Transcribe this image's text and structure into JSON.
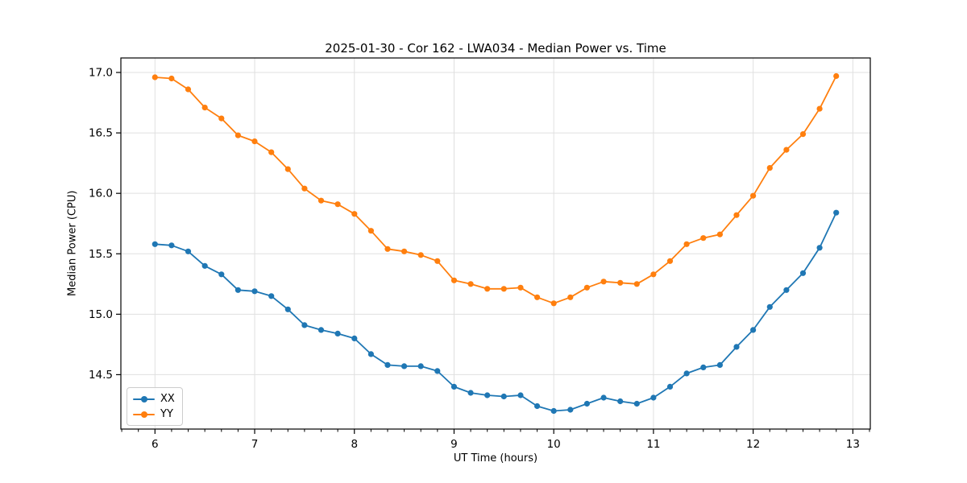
{
  "chart_data": {
    "type": "line",
    "title": "2025-01-30 - Cor 162 - LWA034 - Median Power vs. Time",
    "xlabel": "UT Time (hours)",
    "ylabel": "Median Power (CPU)",
    "grid": true,
    "grid_color": "#e0e0e0",
    "axis_color": "#000000",
    "legend_position": "lower left",
    "marker": "o",
    "xlim": [
      5.658,
      13.175
    ],
    "ylim": [
      14.05,
      17.12
    ],
    "xticks": [
      6,
      7,
      8,
      9,
      10,
      11,
      12,
      13
    ],
    "yticks": [
      14.5,
      15.0,
      15.5,
      16.0,
      16.5,
      17.0
    ],
    "minor_ticks_per_interval": 6,
    "x": [
      6.0,
      6.1667,
      6.3333,
      6.5,
      6.6667,
      6.8333,
      7.0,
      7.1667,
      7.3333,
      7.5,
      7.6667,
      7.8333,
      8.0,
      8.1667,
      8.3333,
      8.5,
      8.6667,
      8.8333,
      9.0,
      9.1667,
      9.3333,
      9.5,
      9.6667,
      9.8333,
      10.0,
      10.1667,
      10.3333,
      10.5,
      10.6667,
      10.8333,
      11.0,
      11.1667,
      11.3333,
      11.5,
      11.6667,
      11.8333,
      12.0,
      12.1667,
      12.3333,
      12.5,
      12.6667,
      12.8333
    ],
    "series": [
      {
        "name": "XX",
        "color": "#1f77b4",
        "values": [
          15.58,
          15.57,
          15.52,
          15.4,
          15.33,
          15.2,
          15.19,
          15.15,
          15.04,
          14.91,
          14.87,
          14.84,
          14.8,
          14.67,
          14.58,
          14.57,
          14.57,
          14.53,
          14.4,
          14.35,
          14.33,
          14.32,
          14.33,
          14.24,
          14.2,
          14.21,
          14.26,
          14.31,
          14.28,
          14.26,
          14.31,
          14.4,
          14.51,
          14.56,
          14.58,
          14.73,
          14.87,
          15.06,
          15.2,
          15.34,
          15.55,
          15.84
        ]
      },
      {
        "name": "YY",
        "color": "#ff7f0e",
        "values": [
          16.96,
          16.95,
          16.86,
          16.71,
          16.62,
          16.48,
          16.43,
          16.34,
          16.2,
          16.04,
          15.94,
          15.91,
          15.83,
          15.69,
          15.54,
          15.52,
          15.49,
          15.44,
          15.28,
          15.25,
          15.21,
          15.21,
          15.22,
          15.14,
          15.09,
          15.14,
          15.22,
          15.27,
          15.26,
          15.25,
          15.33,
          15.44,
          15.58,
          15.63,
          15.66,
          15.82,
          15.98,
          16.21,
          16.36,
          16.49,
          16.7,
          16.97
        ]
      }
    ]
  }
}
